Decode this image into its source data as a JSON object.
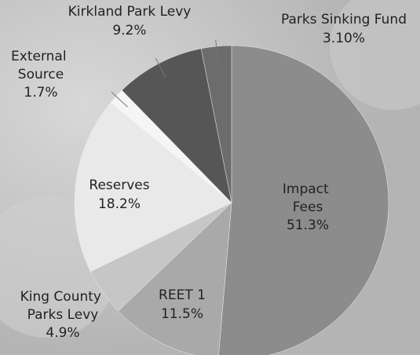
{
  "chart_data": {
    "type": "pie",
    "categories": [
      "Impact Fees",
      "REET 1",
      "King County Parks Levy",
      "Reserves",
      "External Source",
      "Kirkland Park Levy",
      "Parks Sinking Fund"
    ],
    "values": [
      51.3,
      11.5,
      4.9,
      18.2,
      1.7,
      9.2,
      3.1
    ],
    "value_labels": [
      "51.3%",
      "11.5%",
      "4.9%",
      "18.2%",
      "1.7%",
      "9.2%",
      "3.10%"
    ],
    "colors": [
      "#8c8c8c",
      "#a9a9a9",
      "#c6c6c6",
      "#e9e9e9",
      "#f5f5f5",
      "#565656",
      "#6c6c6c"
    ]
  }
}
